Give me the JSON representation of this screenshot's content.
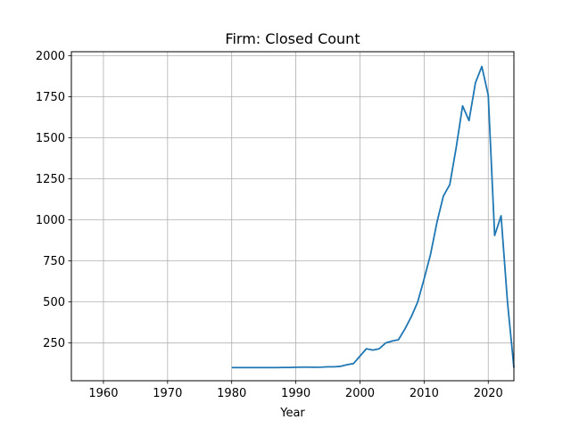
{
  "chart_data": {
    "type": "line",
    "title": "Firm: Closed Count",
    "xlabel": "Year",
    "ylabel": "",
    "xlim": [
      1955,
      2024
    ],
    "ylim": [
      20,
      2025
    ],
    "grid": true,
    "legend": "none",
    "line_color": "#1f77b4",
    "x_ticks": [
      1960,
      1970,
      1980,
      1990,
      2000,
      2010,
      2020
    ],
    "y_ticks": [
      250,
      500,
      750,
      1000,
      1250,
      1500,
      1750,
      2000
    ],
    "x_tick_labels": [
      "1960",
      "1970",
      "1980",
      "1990",
      "2000",
      "2010",
      "2020"
    ],
    "y_tick_labels": [
      "250",
      "500",
      "750",
      "1000",
      "1250",
      "1500",
      "1750",
      "2000"
    ],
    "series": [
      {
        "x": [
          1980,
          1981,
          1982,
          1983,
          1984,
          1985,
          1986,
          1987,
          1988,
          1989,
          1990,
          1991,
          1992,
          1993,
          1994,
          1995,
          1996,
          1997,
          1998,
          1999,
          2000,
          2001,
          2002,
          2003,
          2004,
          2005,
          2006,
          2007,
          2008,
          2009,
          2010,
          2011,
          2012,
          2013,
          2014,
          2015,
          2016,
          2017,
          2018,
          2019,
          2020,
          2021,
          2022,
          2023,
          2024
        ],
        "values": [
          100,
          100,
          100,
          100,
          100,
          100,
          100,
          100,
          101,
          101,
          102,
          103,
          103,
          102,
          103,
          105,
          105,
          108,
          118,
          125,
          170,
          215,
          207,
          215,
          250,
          262,
          270,
          335,
          410,
          500,
          640,
          790,
          985,
          1145,
          1215,
          1440,
          1695,
          1605,
          1835,
          1935,
          1760,
          905,
          1025,
          500,
          100
        ]
      }
    ]
  }
}
